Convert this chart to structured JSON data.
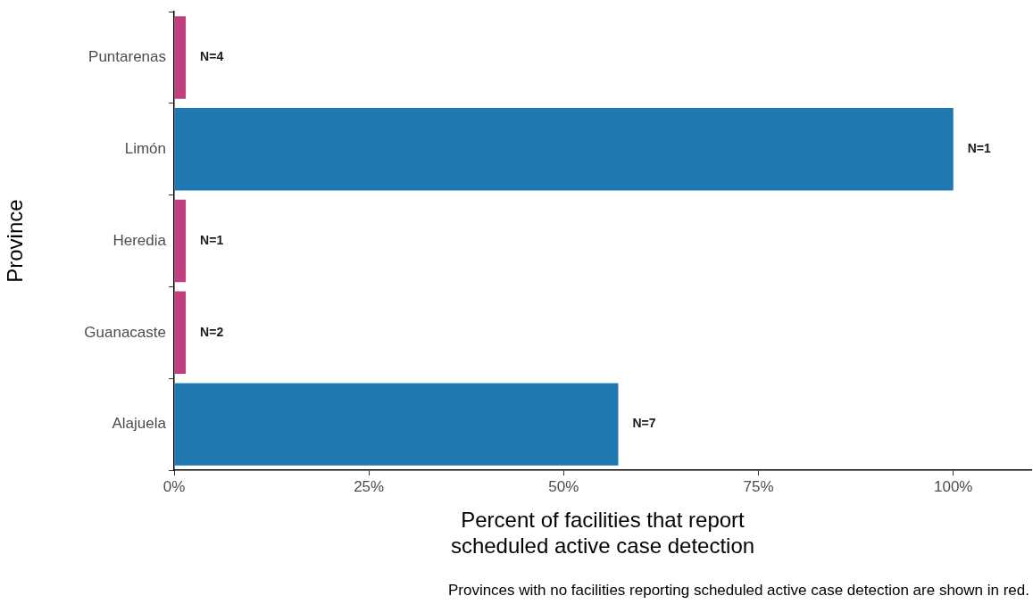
{
  "chart_data": {
    "type": "bar",
    "orientation": "horizontal",
    "xlabel": "Percent of facilities that report\nscheduled active case detection",
    "ylabel": "Province",
    "categories": [
      "Puntarenas",
      "Limón",
      "Heredia",
      "Guanacaste",
      "Alajuela"
    ],
    "values": [
      1.5,
      100,
      1.5,
      1.5,
      57
    ],
    "colors": [
      "#c0407f",
      "#1f78b0",
      "#c0407f",
      "#c0407f",
      "#1f78b0"
    ],
    "xlim": [
      0,
      110
    ],
    "xticks": [
      {
        "value": 0,
        "label": "0%"
      },
      {
        "value": 25,
        "label": "25%"
      },
      {
        "value": 50,
        "label": "50%"
      },
      {
        "value": 75,
        "label": "75%"
      },
      {
        "value": 100,
        "label": "100%"
      }
    ],
    "grid": false,
    "legend": false,
    "annotations": [
      {
        "text": "N=4",
        "x": 1.5,
        "y": "Puntarenas"
      },
      {
        "text": "N=1",
        "x": 100,
        "y": "Limón"
      },
      {
        "text": "N=1",
        "x": 1.5,
        "y": "Heredia"
      },
      {
        "text": "N=2",
        "x": 1.5,
        "y": "Guanacaste"
      },
      {
        "text": "N=7",
        "x": 57,
        "y": "Alajuela"
      },
      "Provinces with no facilities reporting scheduled active case detection are shown in red."
    ]
  }
}
